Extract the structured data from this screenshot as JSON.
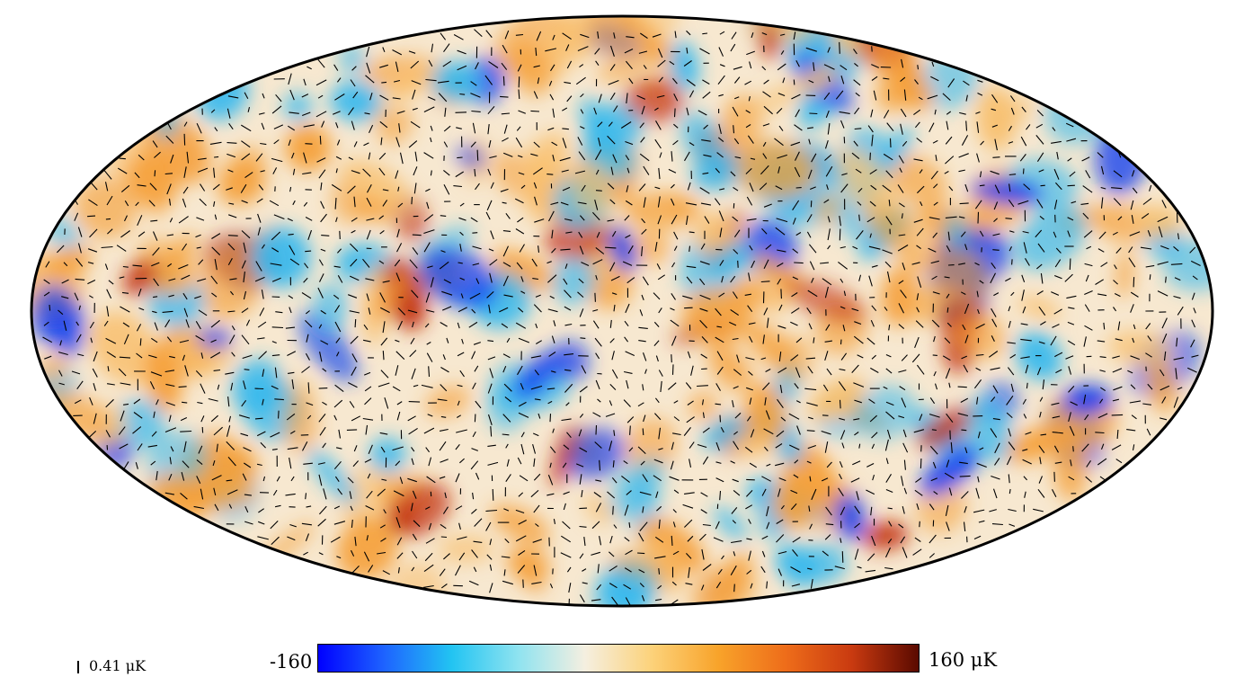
{
  "scale": {
    "label": "0.41 μK"
  },
  "colorbar": {
    "min_label": "-160",
    "max_label": "160 μK",
    "stops": [
      "#0000ff",
      "#1e64ff",
      "#22c4f2",
      "#8fe3f0",
      "#f5efe0",
      "#fcd27a",
      "#f8a32a",
      "#ee6d1a",
      "#c93a10",
      "#5a0a00"
    ]
  },
  "map": {
    "projection": "Mollweide",
    "background": "#f7e8d0",
    "hot_color": "#f5a03a",
    "cold_color": "#33b8ee",
    "deep_cold_color": "#0a3cf0",
    "deep_hot_color": "#c2300c",
    "outline_color": "#000000"
  }
}
